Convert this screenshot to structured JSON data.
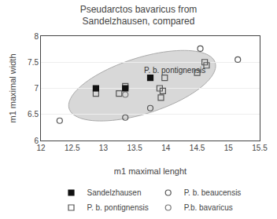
{
  "chart_data": {
    "type": "scatter",
    "title": "Pseudarctos bavaricus from\nSandelzhausen, compared",
    "xlabel": "m1 maximal lenght",
    "ylabel": "m1 maximal width",
    "xlim": [
      12,
      15.5
    ],
    "ylim": [
      6,
      8
    ],
    "xticks": [
      12,
      12.5,
      13,
      13.5,
      14,
      14.5,
      15,
      15.5
    ],
    "yticks": [
      6,
      6.5,
      7,
      7.5,
      8
    ],
    "grid": "y",
    "legend": "bottom",
    "series": [
      {
        "name": "Sandelzhausen",
        "color": "#111111",
        "marker": "square",
        "x": [
          12.88,
          13.35,
          13.75
        ],
        "values": [
          7.0,
          7.0,
          7.2
        ]
      },
      {
        "name": "P. b. beaucensis",
        "color": "#555555",
        "marker": "circle-open",
        "x": [
          12.3,
          13.35,
          13.75,
          14.55,
          15.15
        ],
        "values": [
          6.38,
          6.44,
          6.62,
          7.76,
          7.55
        ]
      },
      {
        "name": "P. b. pontignensis",
        "color": "#555555",
        "marker": "square-open",
        "x": [
          12.88,
          13.25,
          13.35,
          13.9,
          13.92,
          13.95,
          13.98,
          14.5,
          14.62,
          14.65
        ],
        "values": [
          6.9,
          6.9,
          7.04,
          7.0,
          6.82,
          6.95,
          7.2,
          7.3,
          7.5,
          7.44
        ]
      },
      {
        "name": "P.b. bavaricus",
        "color": "#777777",
        "marker": "circle-open",
        "x": [
          13.35
        ],
        "values": [
          6.88
        ]
      }
    ],
    "ellipse": {
      "center": [
        13.62,
        7.05
      ],
      "width": 2.5,
      "height": 1.05,
      "angle": 22,
      "color": "#d8d8d8",
      "edge_color": "#aaaaaa"
    },
    "annotations": [
      {
        "text": "P. b. pontignensis",
        "x": 13.62,
        "y": 7.24
      }
    ]
  }
}
